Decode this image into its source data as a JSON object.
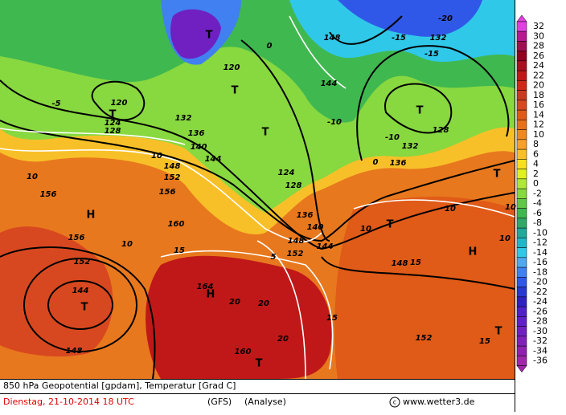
{
  "map": {
    "labels": [
      "H",
      "H",
      "H",
      "T",
      "T",
      "T",
      "T",
      "T",
      "T",
      "T",
      "T",
      "T",
      "T",
      "144",
      "144",
      "144",
      "144",
      "148",
      "148",
      "148",
      "148",
      "148",
      "152",
      "152",
      "152",
      "152",
      "156",
      "156",
      "156",
      "160",
      "160",
      "164",
      "136",
      "140",
      "132",
      "128",
      "124",
      "120",
      "128",
      "136",
      "140",
      "124",
      "132",
      "128",
      "132",
      "136",
      "120",
      "10",
      "10",
      "10",
      "15",
      "15",
      "20",
      "20",
      "20",
      "10",
      "15",
      "10",
      "5",
      "0",
      "0",
      "-5",
      "-10",
      "-15",
      "-15",
      "-20",
      "-10",
      "10",
      "15",
      "10"
    ]
  },
  "legend": {
    "ticks": [
      32,
      30,
      28,
      26,
      24,
      22,
      20,
      18,
      16,
      14,
      12,
      10,
      8,
      6,
      4,
      2,
      0,
      -2,
      -4,
      -6,
      -8,
      -10,
      -12,
      -14,
      -16,
      -18,
      -20,
      -22,
      -24,
      -26,
      -28,
      -30,
      -32,
      -34,
      -36
    ],
    "colors": [
      "#e040e0",
      "#b81890",
      "#a01050",
      "#900020",
      "#a81020",
      "#c01818",
      "#d02818",
      "#c83a20",
      "#d84820",
      "#e05a18",
      "#e87018",
      "#f08820",
      "#f8a028",
      "#f8c028",
      "#f8e020",
      "#e0f020",
      "#b0e838",
      "#88d840",
      "#60c848",
      "#40b850",
      "#30a868",
      "#20a898",
      "#20b8c8",
      "#30c8e8",
      "#50a8f0",
      "#4080f0",
      "#3058e8",
      "#2838d0",
      "#3020c0",
      "#5020c8",
      "#6020c8",
      "#7020c0",
      "#8020b8",
      "#9020b0",
      "#a028a8"
    ]
  },
  "footer": {
    "title": "850 hPa Geopotential [gpdam], Temperatur [Grad C]",
    "date": "Dienstag, 21-10-2014  18 UTC",
    "model": "(GFS)",
    "run": "(Analyse)",
    "credit": "www.wetter3.de"
  }
}
